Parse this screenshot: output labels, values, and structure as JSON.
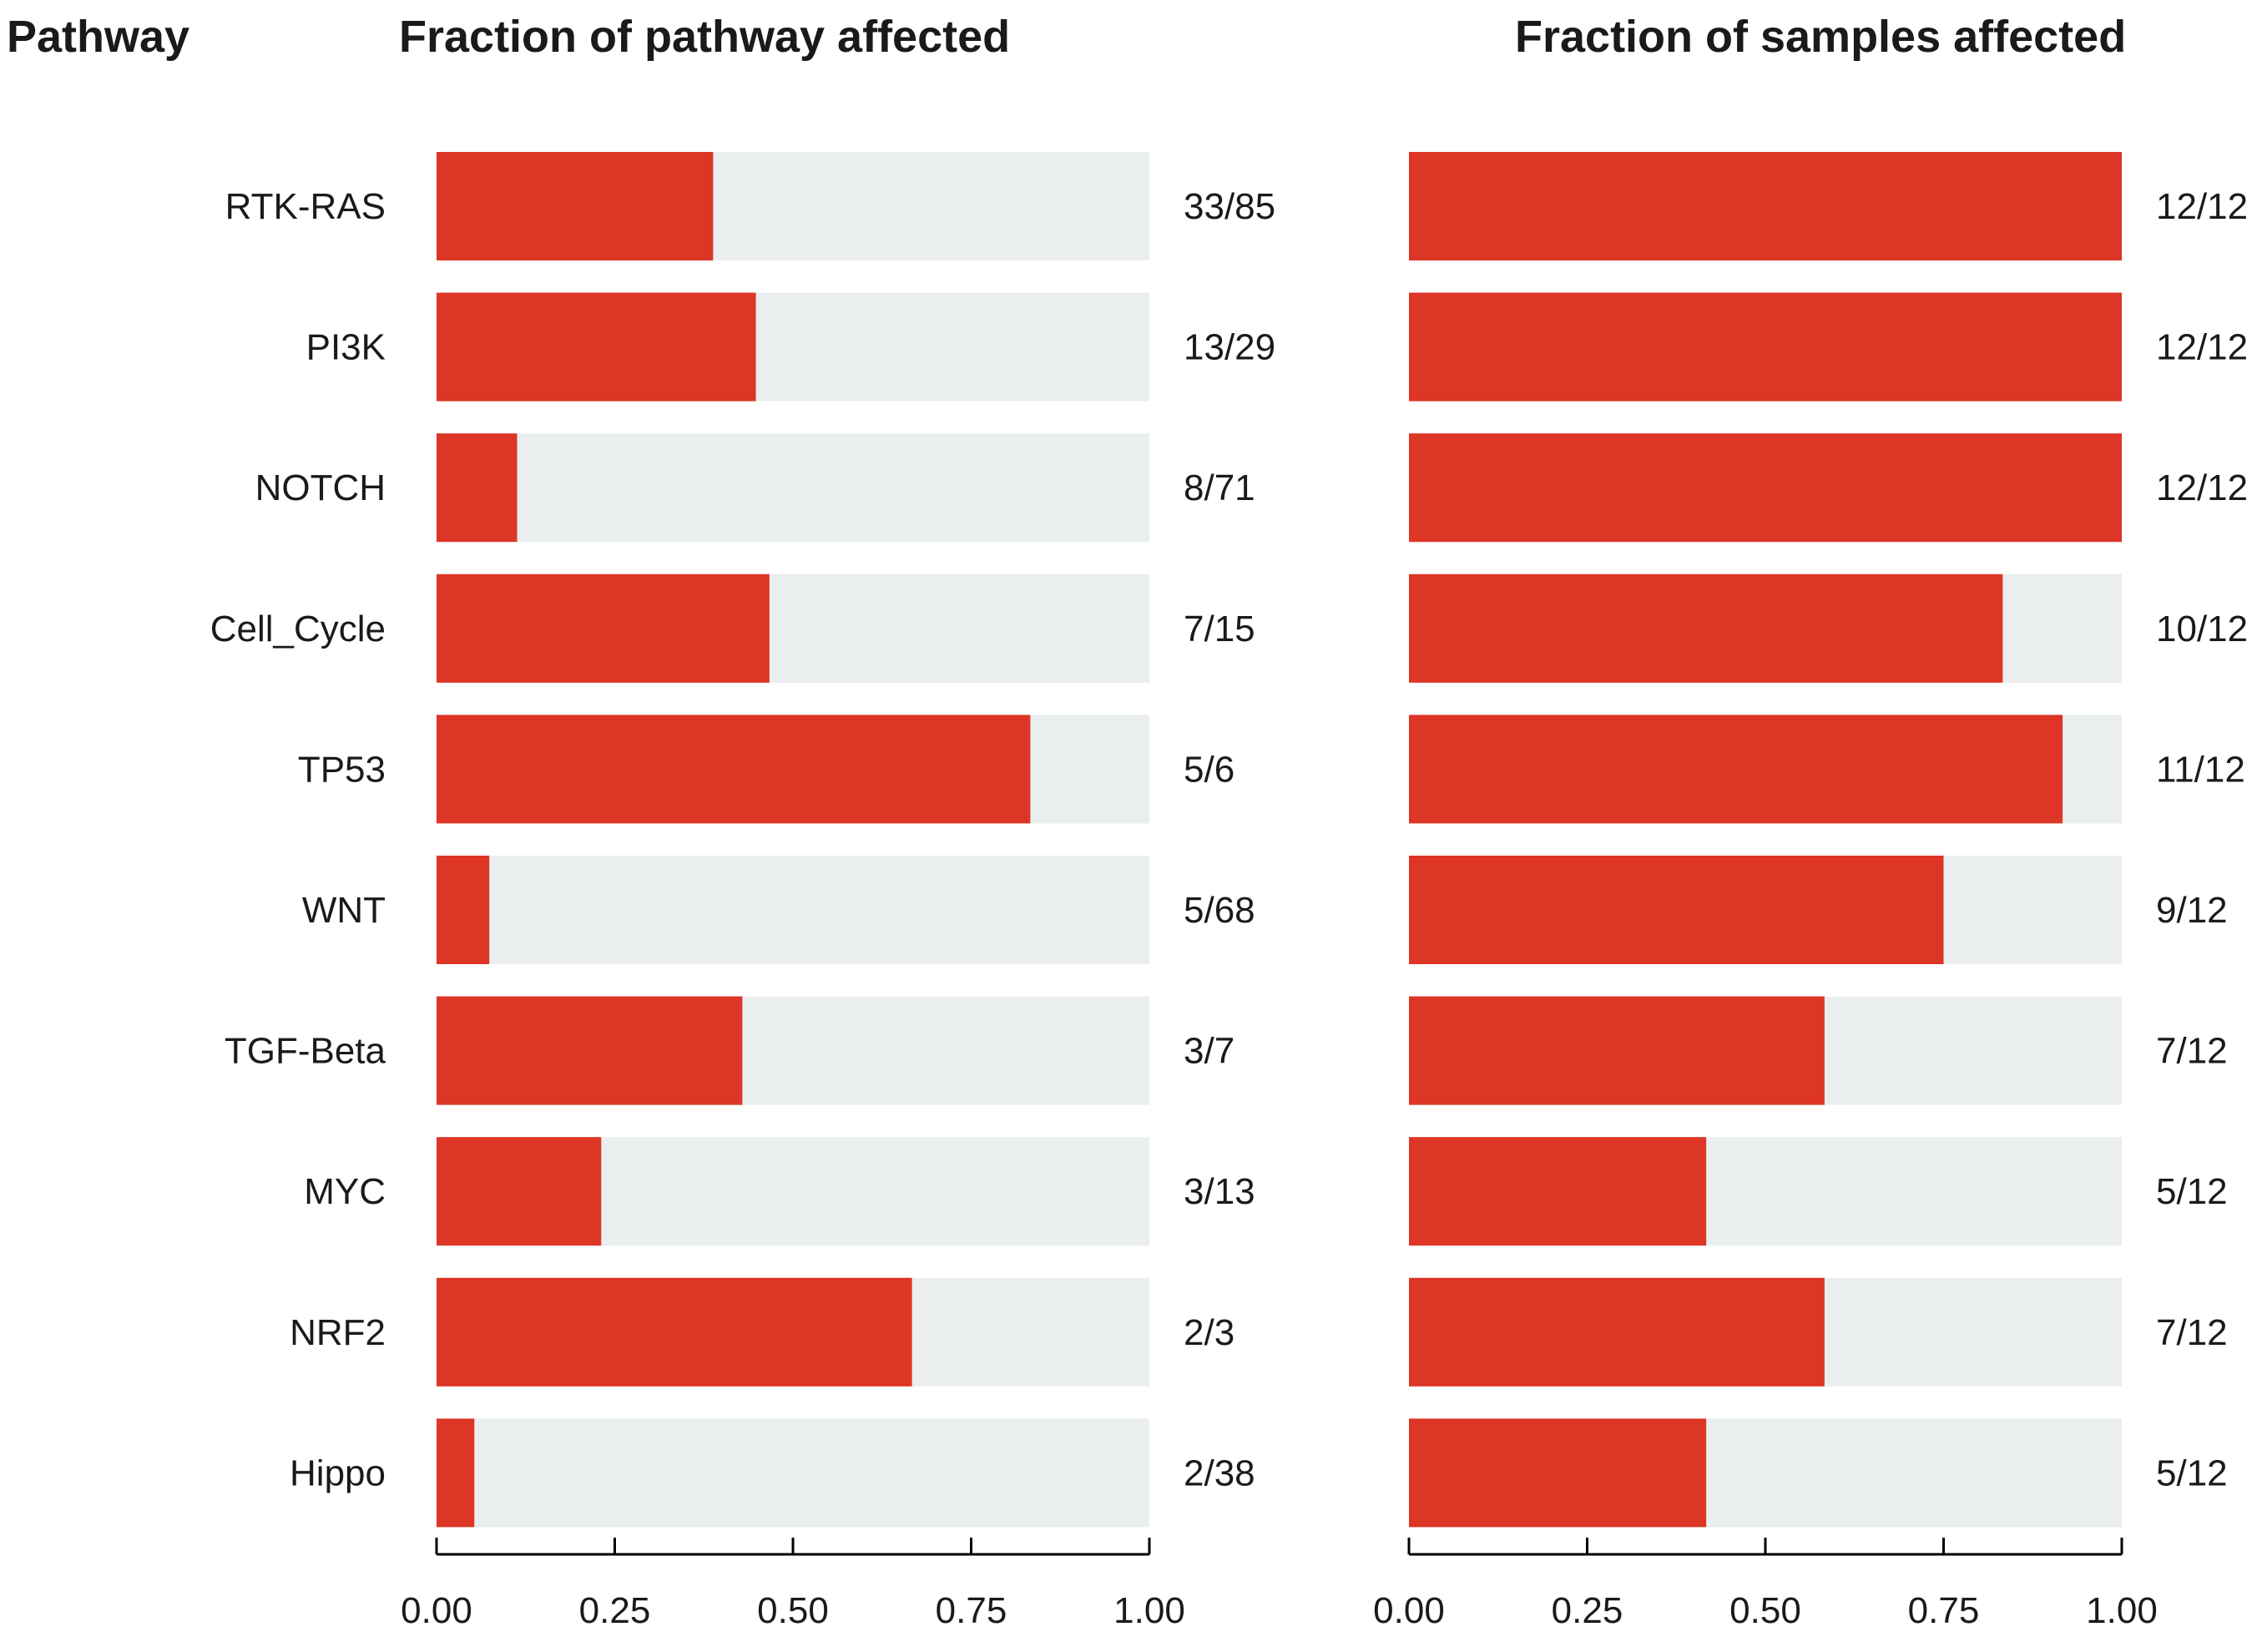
{
  "chart_data": {
    "type": "bar",
    "orientation": "horizontal",
    "stacked_against_total": true,
    "row_header": "Pathway",
    "categories": [
      "RTK-RAS",
      "PI3K",
      "NOTCH",
      "Cell_Cycle",
      "TP53",
      "WNT",
      "TGF-Beta",
      "MYC",
      "NRF2",
      "Hippo"
    ],
    "panels": [
      {
        "title": "Fraction of pathway affected",
        "xlim": [
          0,
          1
        ],
        "ticks": [
          "0.00",
          "0.25",
          "0.50",
          "0.75",
          "1.00"
        ],
        "values": [
          0.388,
          0.448,
          0.113,
          0.467,
          0.833,
          0.074,
          0.429,
          0.231,
          0.667,
          0.053
        ],
        "labels": [
          "33/85",
          "13/29",
          "8/71",
          "7/15",
          "5/6",
          "5/68",
          "3/7",
          "3/13",
          "2/3",
          "2/38"
        ]
      },
      {
        "title": "Fraction of samples affected",
        "xlim": [
          0,
          1
        ],
        "ticks": [
          "0.00",
          "0.25",
          "0.50",
          "0.75",
          "1.00"
        ],
        "values": [
          1.0,
          1.0,
          1.0,
          0.833,
          0.917,
          0.75,
          0.583,
          0.417,
          0.583,
          0.417
        ],
        "labels": [
          "12/12",
          "12/12",
          "12/12",
          "10/12",
          "11/12",
          "9/12",
          "7/12",
          "5/12",
          "7/12",
          "5/12"
        ]
      }
    ],
    "colors": {
      "affected": "#dd3526",
      "background": "#ebeeee",
      "axis": "#000000"
    }
  }
}
